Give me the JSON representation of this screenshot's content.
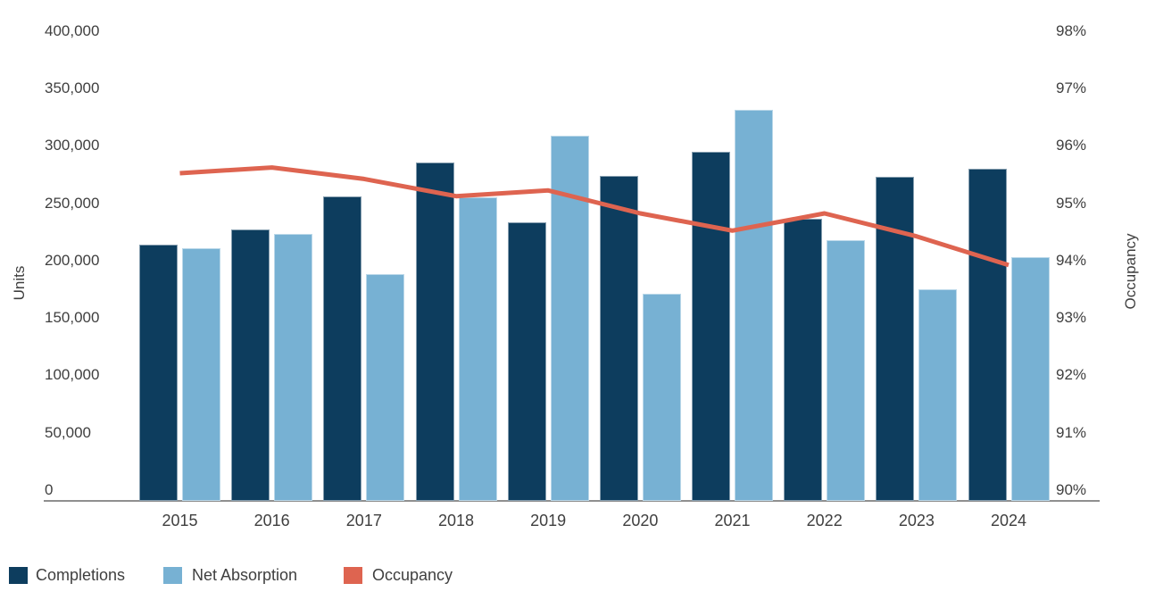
{
  "chart_data": {
    "type": "combo-bar-line",
    "title": "",
    "categories": [
      "2015",
      "2016",
      "2017",
      "2018",
      "2019",
      "2020",
      "2021",
      "2022",
      "2023",
      "2024"
    ],
    "series": [
      {
        "name": "Completions",
        "type": "bar",
        "axis": "left",
        "color": "#0d3d5e",
        "values": [
          223000,
          236000,
          265000,
          294000,
          242000,
          283000,
          304000,
          245000,
          282000,
          289000
        ]
      },
      {
        "name": "Net Absorption",
        "type": "bar",
        "axis": "left",
        "color": "#77b1d3",
        "values": [
          220000,
          232000,
          197000,
          264000,
          318000,
          180000,
          340000,
          227000,
          184000,
          212000
        ]
      },
      {
        "name": "Occupancy",
        "type": "line",
        "axis": "right",
        "color": "#de6450",
        "values": [
          95.7,
          95.8,
          95.6,
          95.3,
          95.4,
          95.0,
          94.7,
          95.0,
          94.6,
          94.1
        ]
      }
    ],
    "left_axis": {
      "title": "Units",
      "min": 0,
      "max": 400000,
      "step": 50000,
      "tick_labels": [
        "0",
        "50,000",
        "100,000",
        "150,000",
        "200,000",
        "250,000",
        "300,000",
        "350,000",
        "400,000"
      ]
    },
    "right_axis": {
      "title": "Occupancy",
      "min": 90,
      "max": 98,
      "step": 1,
      "tick_labels": [
        "90%",
        "91%",
        "92%",
        "93%",
        "94%",
        "95%",
        "96%",
        "97%",
        "98%"
      ]
    },
    "legend": {
      "position": "bottom-left",
      "items": [
        "Completions",
        "Net Absorption",
        "Occupancy"
      ]
    },
    "grid": "off"
  },
  "colors": {
    "completions": "#0d3d5e",
    "net_absorption": "#77b1d3",
    "occupancy_line": "#de6450",
    "axis_line": "#8f8f8f",
    "text": "#3f3f3f",
    "background": "#ffffff"
  }
}
